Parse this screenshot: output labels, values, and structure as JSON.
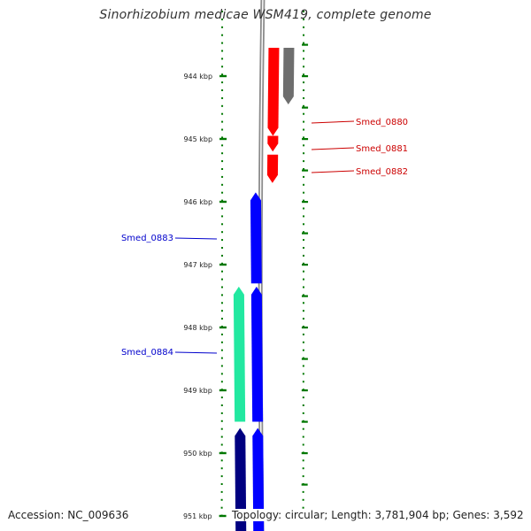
{
  "title": "Sinorhizobium medicae WSM419, complete genome",
  "footer": {
    "accession": "Accession: NC_009636",
    "stats": "Topology: circular; Length: 3,781,904 bp; Genes: 3,592"
  },
  "scale": {
    "unit": "kbp",
    "ticks": [
      {
        "label": "944 kbp",
        "kbp": 944
      },
      {
        "label": "945 kbp",
        "kbp": 945
      },
      {
        "label": "946 kbp",
        "kbp": 946
      },
      {
        "label": "947 kbp",
        "kbp": 947
      },
      {
        "label": "948 kbp",
        "kbp": 948
      },
      {
        "label": "949 kbp",
        "kbp": 949
      },
      {
        "label": "950 kbp",
        "kbp": 950
      },
      {
        "label": "951 kbp",
        "kbp": 951
      }
    ]
  },
  "colors": {
    "forward": "#ff0000",
    "forward_gray": "#6e6e6e",
    "reverse": "#0000ff",
    "reverse_teal": "#22e8a0",
    "reverse_dark": "#000080",
    "scale_marks": "#007700",
    "backbone": "#8c8c8c",
    "label_red": "#cc0000",
    "label_blue": "#0000cc"
  },
  "genes": [
    {
      "name": "Smed_0880",
      "strand": "forward",
      "color": "#cc0000",
      "start_kbp": 943.55,
      "end_kbp": 944.95,
      "side": "right",
      "track": 1
    },
    {
      "name": "Smed_0881",
      "strand": "forward",
      "color": "#cc0000",
      "start_kbp": 944.95,
      "end_kbp": 945.2,
      "side": "right",
      "track": 1
    },
    {
      "name": "Smed_0882",
      "strand": "forward",
      "color": "#cc0000",
      "start_kbp": 945.25,
      "end_kbp": 945.7,
      "side": "right",
      "track": 1
    },
    {
      "name": "Smed_0883",
      "strand": "reverse",
      "color": "#0000cc",
      "start_kbp": 945.85,
      "end_kbp": 947.3,
      "side": "left",
      "track": 1
    },
    {
      "name": "Smed_0884",
      "strand": "reverse",
      "color": "#0000cc",
      "start_kbp": 947.35,
      "end_kbp": 949.5,
      "side": "left",
      "track": 1
    }
  ],
  "extra_features": [
    {
      "strand": "forward",
      "color": "#6e6e6e",
      "start_kbp": 943.55,
      "end_kbp": 944.45,
      "track": 2
    },
    {
      "strand": "reverse",
      "color": "#22e8a0",
      "start_kbp": 947.35,
      "end_kbp": 949.5,
      "track": 2
    },
    {
      "strand": "reverse",
      "color": "#0000ff",
      "start_kbp": 949.6,
      "end_kbp": 951.3,
      "track": 1
    },
    {
      "strand": "reverse",
      "color": "#000080",
      "start_kbp": 949.6,
      "end_kbp": 951.3,
      "track": 2
    }
  ]
}
